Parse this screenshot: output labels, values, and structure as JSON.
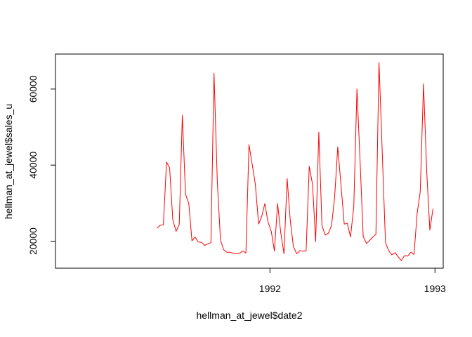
{
  "chart_data": {
    "type": "line",
    "title": "",
    "xlabel": "hellman_at_jewel$date2",
    "ylabel": "hellman_at_jewel$sales_u",
    "x_ticks": [
      {
        "value": 1992.0,
        "label": "1992"
      },
      {
        "value": 1993.0,
        "label": "1993"
      }
    ],
    "y_ticks": [
      {
        "value": 20000,
        "label": "20000"
      },
      {
        "value": 40000,
        "label": "40000"
      },
      {
        "value": 60000,
        "label": "60000"
      }
    ],
    "xlim": [
      1990.7,
      1993.05
    ],
    "ylim": [
      12900,
      69200
    ],
    "grid": false,
    "legend": "none",
    "series": [
      {
        "color": "#ff0000",
        "x": [
          1991.315,
          1991.335,
          1991.354,
          1991.373,
          1991.392,
          1991.411,
          1991.431,
          1991.45,
          1991.469,
          1991.488,
          1991.508,
          1991.527,
          1991.546,
          1991.565,
          1991.585,
          1991.604,
          1991.623,
          1991.642,
          1991.661,
          1991.681,
          1991.7,
          1991.719,
          1991.738,
          1991.758,
          1991.777,
          1991.796,
          1991.815,
          1991.835,
          1991.854,
          1991.873,
          1991.892,
          1991.911,
          1991.931,
          1991.95,
          1991.969,
          1991.988,
          1992.008,
          1992.027,
          1992.046,
          1992.065,
          1992.085,
          1992.104,
          1992.123,
          1992.142,
          1992.162,
          1992.181,
          1992.2,
          1992.219,
          1992.238,
          1992.258,
          1992.277,
          1992.296,
          1992.315,
          1992.335,
          1992.354,
          1992.373,
          1992.392,
          1992.411,
          1992.431,
          1992.45,
          1992.469,
          1992.488,
          1992.508,
          1992.527,
          1992.546,
          1992.565,
          1992.585,
          1992.604,
          1992.623,
          1992.642,
          1992.661,
          1992.681,
          1992.7,
          1992.719,
          1992.738,
          1992.758,
          1992.777,
          1992.796,
          1992.815,
          1992.835,
          1992.854,
          1992.873,
          1992.892,
          1992.911,
          1992.931,
          1992.95,
          1992.969,
          1992.988
        ],
        "y": [
          23400,
          24200,
          24300,
          40800,
          39300,
          25700,
          22600,
          24400,
          53100,
          32400,
          29900,
          20100,
          21100,
          19800,
          19700,
          18900,
          19300,
          19600,
          64200,
          35600,
          20300,
          17800,
          17100,
          17100,
          16800,
          16700,
          16800,
          17400,
          16900,
          45400,
          40300,
          35000,
          24500,
          26500,
          29900,
          25100,
          22600,
          17400,
          29900,
          22400,
          16700,
          36500,
          25400,
          18600,
          16700,
          17500,
          17400,
          17400,
          39700,
          34900,
          19900,
          48700,
          24100,
          21600,
          22100,
          24100,
          31500,
          44800,
          34500,
          24500,
          24700,
          21100,
          29100,
          60000,
          41300,
          21200,
          19400,
          20200,
          21100,
          21800,
          67000,
          43000,
          19700,
          17500,
          16400,
          17000,
          15900,
          14900,
          16200,
          16100,
          17100,
          16500,
          27300,
          33000,
          61400,
          38400,
          22900,
          28500
        ]
      }
    ]
  }
}
